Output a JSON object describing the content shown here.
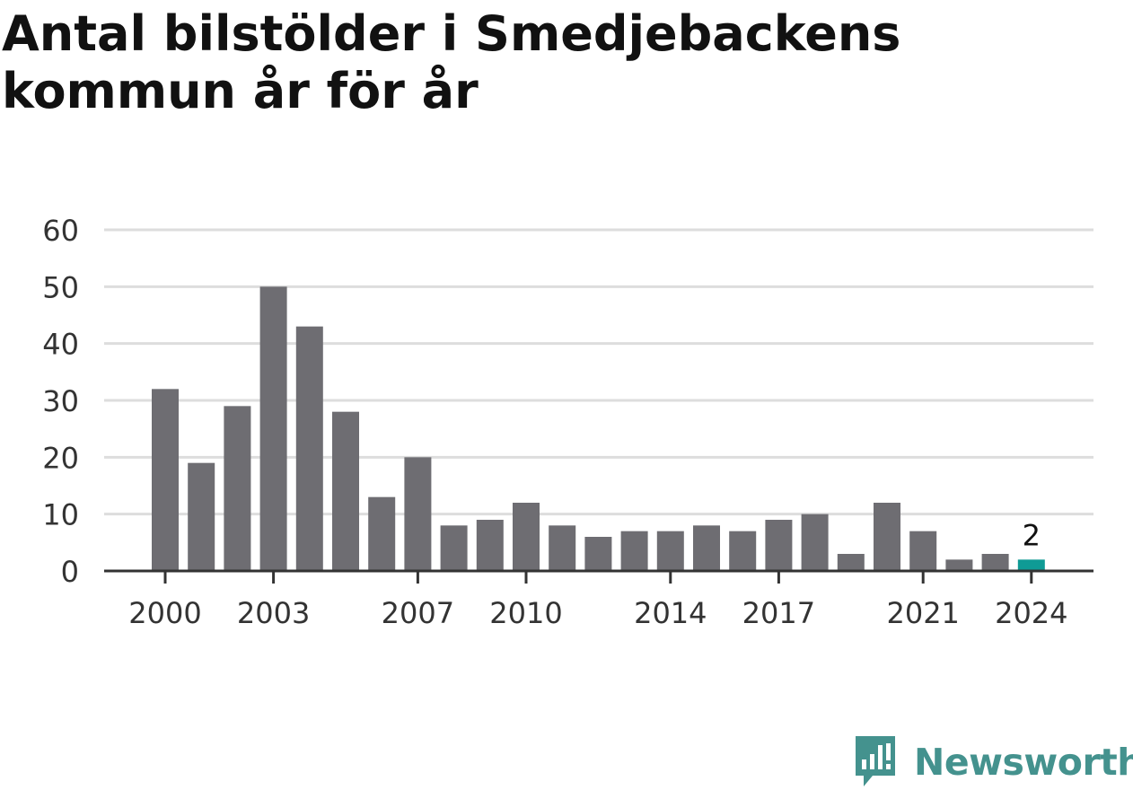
{
  "title": "Antal bilstölder i Smedjebackens kommun år för år",
  "brand": {
    "name": "Newsworthy",
    "icon": "bar-chart-speech-bubble-icon",
    "color": "#44928e"
  },
  "colors": {
    "bar": "#6e6d72",
    "highlight": "#0f9b95",
    "grid": "#dddddd",
    "axis": "#333333",
    "text": "#333333"
  },
  "chart_data": {
    "type": "bar",
    "categories": [
      "2000",
      "2001",
      "2002",
      "2003",
      "2004",
      "2005",
      "2006",
      "2007",
      "2008",
      "2009",
      "2010",
      "2011",
      "2012",
      "2013",
      "2014",
      "2015",
      "2016",
      "2017",
      "2018",
      "2019",
      "2020",
      "2021",
      "2022",
      "2023",
      "2024"
    ],
    "values": [
      32,
      19,
      29,
      50,
      43,
      28,
      13,
      20,
      8,
      9,
      12,
      8,
      6,
      7,
      7,
      8,
      7,
      9,
      10,
      3,
      12,
      7,
      2,
      3,
      2
    ],
    "highlight_index": 24,
    "highlight_label": "2",
    "xticks": [
      "2000",
      "2003",
      "2007",
      "2010",
      "2014",
      "2017",
      "2021",
      "2024"
    ],
    "yticks": [
      0,
      10,
      20,
      30,
      40,
      50,
      60
    ],
    "ylim": [
      0,
      60
    ],
    "grid": true,
    "xlabel": "",
    "ylabel": ""
  }
}
